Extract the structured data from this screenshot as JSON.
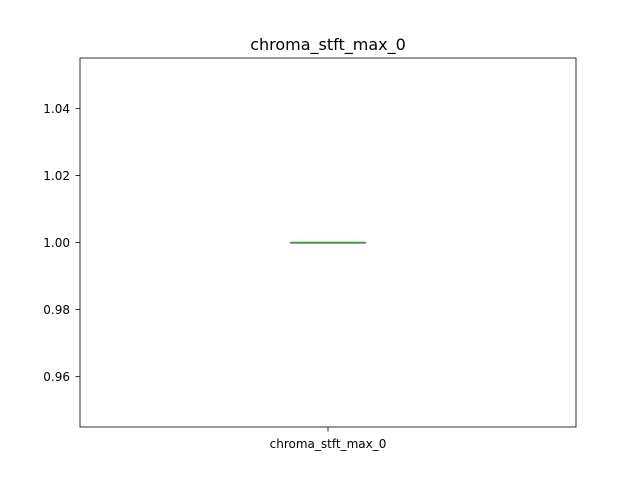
{
  "chart_data": {
    "type": "box",
    "title": "chroma_stft_max_0",
    "xlabel": "",
    "ylabel": "",
    "categories": [
      "chroma_stft_max_0"
    ],
    "ylim": [
      0.945,
      1.055
    ],
    "yticks": [
      {
        "value": 0.96,
        "label": "0.96"
      },
      {
        "value": 0.98,
        "label": "0.98"
      },
      {
        "value": 1.0,
        "label": "1.00"
      },
      {
        "value": 1.02,
        "label": "1.02"
      },
      {
        "value": 1.04,
        "label": "1.04"
      }
    ],
    "boxes": [
      {
        "category": "chroma_stft_max_0",
        "min": 1.0,
        "q1": 1.0,
        "median": 1.0,
        "q3": 1.0,
        "max": 1.0
      }
    ],
    "grid": false,
    "colors": {
      "box": "#000000",
      "median": "#2ca02c"
    }
  }
}
